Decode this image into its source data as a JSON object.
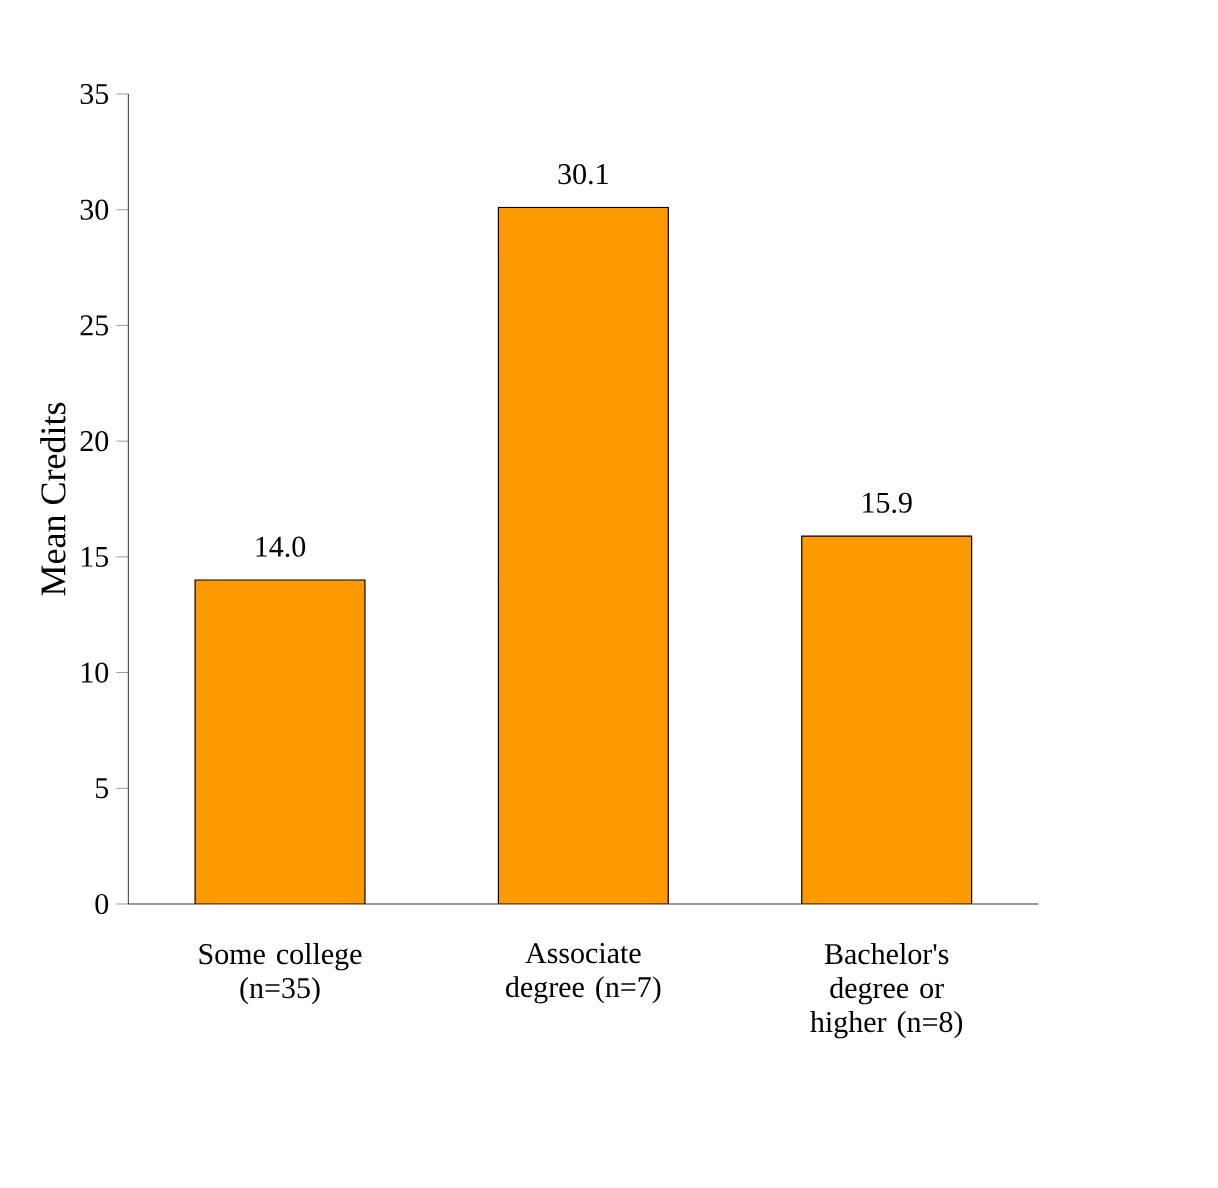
{
  "chart_data": {
    "type": "bar",
    "ylabel": "Mean Credits",
    "categories": [
      "Some college (n=35)",
      "Associate degree (n=7)",
      "Bachelor's degree or higher (n=8)"
    ],
    "values": [
      14.0,
      30.1,
      15.9
    ],
    "value_labels": [
      "14.0",
      "30.1",
      "15.9"
    ],
    "color": "#ff9900",
    "ylim": [
      0,
      35
    ],
    "yticks": [
      0,
      5,
      10,
      15,
      20,
      25,
      30,
      35
    ]
  }
}
